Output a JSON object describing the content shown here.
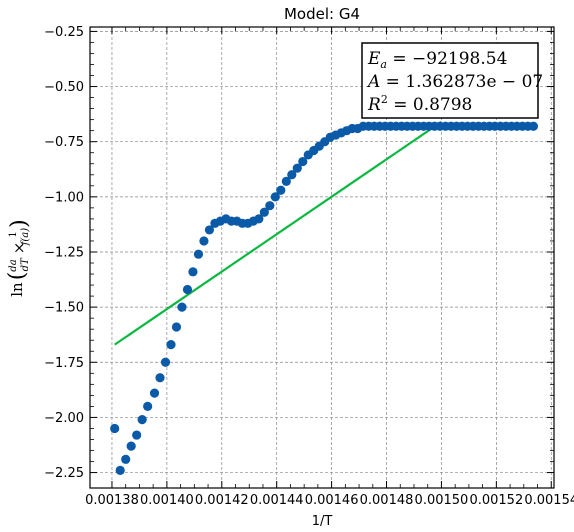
{
  "chart_data": {
    "type": "scatter",
    "title": "Model: G4",
    "xlabel": "1/T",
    "ylabel": "ln(da/dT × 1/f(a))",
    "xlim": [
      0.001372,
      0.001541
    ],
    "ylim": [
      -2.32,
      -0.23
    ],
    "xticks": [
      0.00138,
      0.0014,
      0.00142,
      0.00144,
      0.00146,
      0.00148,
      0.0015,
      0.00152,
      0.00154
    ],
    "xtick_labels": [
      "0.00138",
      "0.00140",
      "0.00142",
      "0.00144",
      "0.00146",
      "0.00148",
      "0.00150",
      "0.00152",
      "0.00154"
    ],
    "yticks": [
      -2.25,
      -2.0,
      -1.75,
      -1.5,
      -1.25,
      -1.0,
      -0.75,
      -0.5,
      -0.25
    ],
    "ytick_labels": [
      "−2.25",
      "−2.00",
      "−1.75",
      "−1.50",
      "−1.25",
      "−1.00",
      "−0.75",
      "−0.50",
      "−0.25"
    ],
    "grid": true,
    "annotation": {
      "Ea": "−92198.54",
      "A": "1.362873e − 07",
      "R2": "0.8798"
    },
    "points": {
      "x": [
        0.001381,
        0.001383,
        0.001385,
        0.001387,
        0.001389,
        0.001391,
        0.001393,
        0.0013955,
        0.0013975,
        0.0013995,
        0.0014015,
        0.0014035,
        0.0014055,
        0.0014075,
        0.0014095,
        0.0014115,
        0.0014135,
        0.0014155,
        0.0014175,
        0.0014195,
        0.0014215,
        0.0014235,
        0.0014255,
        0.0014275,
        0.0014295,
        0.0014315,
        0.0014335,
        0.0014355,
        0.0014375,
        0.0014395,
        0.0014415,
        0.0014435,
        0.0014455,
        0.0014475,
        0.0014495,
        0.0014515,
        0.0014535,
        0.0014555,
        0.0014575,
        0.0014595,
        0.0014615,
        0.0014635,
        0.0014655,
        0.0014675,
        0.0014695,
        0.0014715,
        0.0014735,
        0.0014755,
        0.0014775,
        0.0014795,
        0.0014815,
        0.0014835,
        0.0014855,
        0.0014875,
        0.0014895,
        0.0014915,
        0.0014935,
        0.0014955,
        0.0014975,
        0.0014995,
        0.0015015,
        0.0015035,
        0.0015055,
        0.0015075,
        0.0015095,
        0.0015115,
        0.0015135,
        0.0015155,
        0.0015175,
        0.0015195,
        0.0015215,
        0.0015235,
        0.0015255,
        0.0015275,
        0.0015295,
        0.0015315,
        0.0015335
      ],
      "y": [
        -2.05,
        -2.24,
        -2.19,
        -2.13,
        -2.08,
        -2.01,
        -1.95,
        -1.89,
        -1.82,
        -1.75,
        -1.67,
        -1.59,
        -1.5,
        -1.42,
        -1.34,
        -1.26,
        -1.2,
        -1.15,
        -1.12,
        -1.11,
        -1.1,
        -1.11,
        -1.11,
        -1.12,
        -1.12,
        -1.11,
        -1.1,
        -1.07,
        -1.04,
        -1.0,
        -0.97,
        -0.93,
        -0.9,
        -0.87,
        -0.84,
        -0.81,
        -0.79,
        -0.77,
        -0.75,
        -0.73,
        -0.72,
        -0.71,
        -0.7,
        -0.69,
        -0.69,
        -0.68,
        -0.68,
        -0.68,
        -0.68,
        -0.68,
        -0.68,
        -0.68,
        -0.68,
        -0.68,
        -0.68,
        -0.68,
        -0.68,
        -0.68,
        -0.68,
        -0.68,
        -0.68,
        -0.68,
        -0.68,
        -0.68,
        -0.68,
        -0.68,
        -0.68,
        -0.68,
        -0.68,
        -0.68,
        -0.68,
        -0.68,
        -0.68,
        -0.68,
        -0.68,
        -0.68,
        -0.68
      ],
      "color": "#0a5aa8"
    },
    "fit_line": {
      "x": [
        0.001381,
        0.0015
      ],
      "y": [
        -1.67,
        -0.66
      ],
      "color": "#0bb841"
    }
  }
}
